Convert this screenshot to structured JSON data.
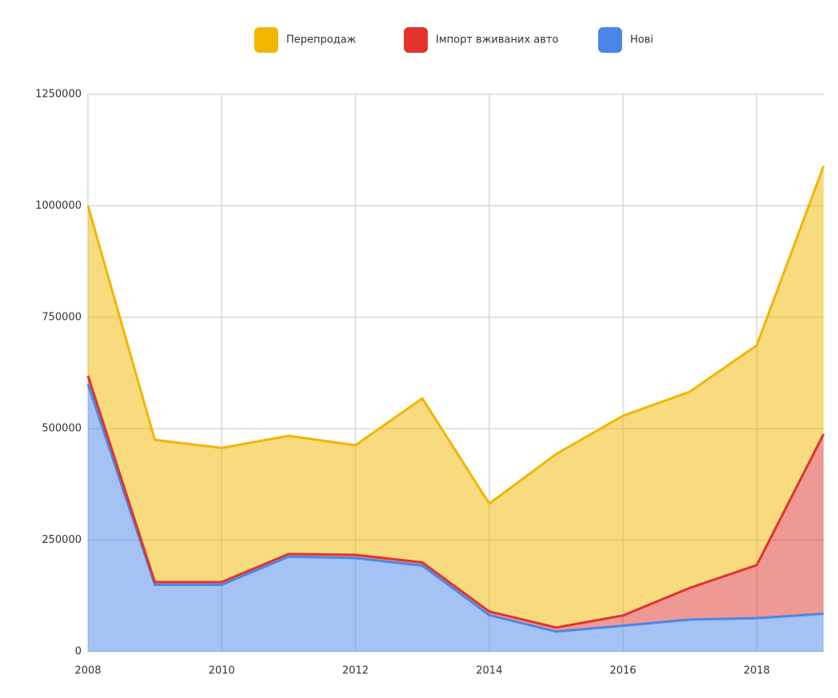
{
  "chart_data": {
    "type": "stacked_area",
    "x": [
      2008,
      2009,
      2010,
      2011,
      2012,
      2013,
      2014,
      2015,
      2016,
      2017,
      2018,
      2019
    ],
    "series": [
      {
        "name": "Нові",
        "color": "#4a86e8",
        "values": [
          600000,
          150000,
          150000,
          213000,
          210000,
          193000,
          82000,
          45000,
          58000,
          72000,
          75000,
          85000
        ]
      },
      {
        "name": "Імпорт вживаних авто",
        "color": "#e0342c",
        "values": [
          19000,
          6000,
          6000,
          6000,
          7000,
          7000,
          8000,
          9000,
          23000,
          71000,
          119000,
          403000
        ]
      },
      {
        "name": "Перепродаж",
        "color": "#f2b600",
        "values": [
          381000,
          319000,
          301000,
          265000,
          246000,
          368000,
          242000,
          389000,
          448000,
          440000,
          493000,
          601000
        ]
      }
    ],
    "legend_order": [
      "Перепродаж",
      "Імпорт вживаних авто",
      "Нові"
    ],
    "xlim": [
      2008,
      2019
    ],
    "xticks": [
      2008,
      2010,
      2012,
      2014,
      2016,
      2018
    ],
    "ylim": [
      0,
      1250000
    ],
    "yticks": [
      0,
      250000,
      500000,
      750000,
      1000000,
      1250000
    ],
    "grid": true
  }
}
